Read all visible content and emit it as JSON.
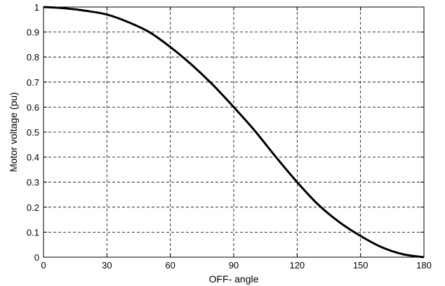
{
  "chart_data": {
    "type": "line",
    "title": "",
    "xlabel": "OFF- angle",
    "ylabel": "Motor voltage (pu)",
    "xlim": [
      0,
      180
    ],
    "ylim": [
      0,
      1
    ],
    "xticks": [
      0,
      30,
      60,
      90,
      120,
      150,
      180
    ],
    "yticks": [
      0,
      0.1,
      0.2,
      0.3,
      0.4,
      0.5,
      0.6,
      0.7,
      0.8,
      0.9,
      1
    ],
    "xtick_labels": [
      "0",
      "30",
      "60",
      "90",
      "120",
      "150",
      "180"
    ],
    "ytick_labels": [
      "0",
      "0.1",
      "0.2",
      "0.3",
      "0.4",
      "0.5",
      "0.6",
      "0.7",
      "0.8",
      "0.9",
      "1"
    ],
    "grid": true,
    "grid_style": "dashed",
    "series": [
      {
        "color": "#000000",
        "x": [
          0,
          10,
          20,
          30,
          40,
          50,
          60,
          70,
          80,
          90,
          100,
          110,
          120,
          130,
          140,
          150,
          160,
          170,
          180
        ],
        "y": [
          1.0,
          0.995,
          0.985,
          0.97,
          0.94,
          0.9,
          0.84,
          0.77,
          0.69,
          0.6,
          0.505,
          0.4,
          0.3,
          0.21,
          0.14,
          0.085,
          0.04,
          0.012,
          0.0
        ]
      }
    ]
  }
}
